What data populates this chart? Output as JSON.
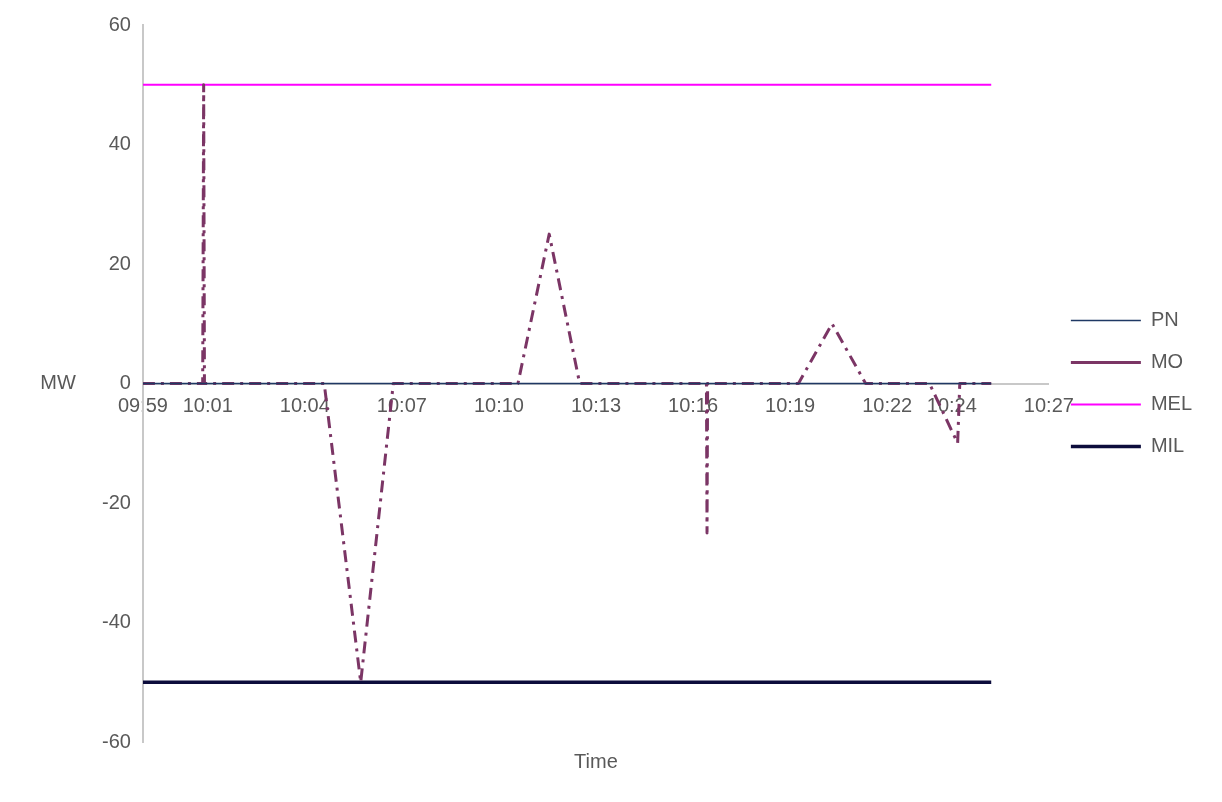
{
  "chart_data": {
    "type": "line",
    "xlabel": "Time",
    "ylabel": "MW",
    "xlim": [
      9.9833,
      10.45
    ],
    "xticks": [
      {
        "value": 9.9833,
        "label": "09:59"
      },
      {
        "value": 10.0167,
        "label": "10:01"
      },
      {
        "value": 10.0667,
        "label": "10:04"
      },
      {
        "value": 10.1167,
        "label": "10:07"
      },
      {
        "value": 10.1667,
        "label": "10:10"
      },
      {
        "value": 10.2167,
        "label": "10:13"
      },
      {
        "value": 10.2667,
        "label": "10:16"
      },
      {
        "value": 10.3167,
        "label": "10:19"
      },
      {
        "value": 10.3667,
        "label": "10:22"
      },
      {
        "value": 10.4,
        "label": "10:24"
      },
      {
        "value": 10.45,
        "label": "10:27"
      }
    ],
    "ylim": [
      -60,
      60
    ],
    "yticks": [
      -60,
      -40,
      -20,
      0,
      20,
      40,
      60
    ],
    "grid": false,
    "legend": "right",
    "marker": "none",
    "series": [
      {
        "name": "PN",
        "color": "#1f3864",
        "line_style": "solid",
        "x": [
          9.9833,
          10.4203
        ],
        "values": [
          0,
          0
        ]
      },
      {
        "name": "MO",
        "color": "#7b3565",
        "line_style": "dashed",
        "x": [
          9.9833,
          10.0141,
          10.0146,
          10.015,
          10.0767,
          10.0955,
          10.1123,
          10.1765,
          10.1926,
          10.2083,
          10.2736,
          10.2739,
          10.2742,
          10.321,
          10.3383,
          10.3556,
          10.3885,
          10.403,
          10.4041,
          10.4203
        ],
        "values": [
          0,
          0,
          50,
          0,
          0,
          -50,
          0,
          0,
          25,
          0,
          0,
          -25,
          0,
          0,
          10,
          0,
          0,
          -10,
          0,
          0
        ]
      },
      {
        "name": "MEL",
        "color": "#ff00ff",
        "line_style": "solid",
        "x": [
          9.9833,
          10.4203
        ],
        "values": [
          50,
          50
        ]
      },
      {
        "name": "MIL",
        "color": "#0c0c3c",
        "line_style": "solid",
        "x": [
          9.9833,
          10.4203
        ],
        "values": [
          -50,
          -50
        ]
      }
    ]
  }
}
